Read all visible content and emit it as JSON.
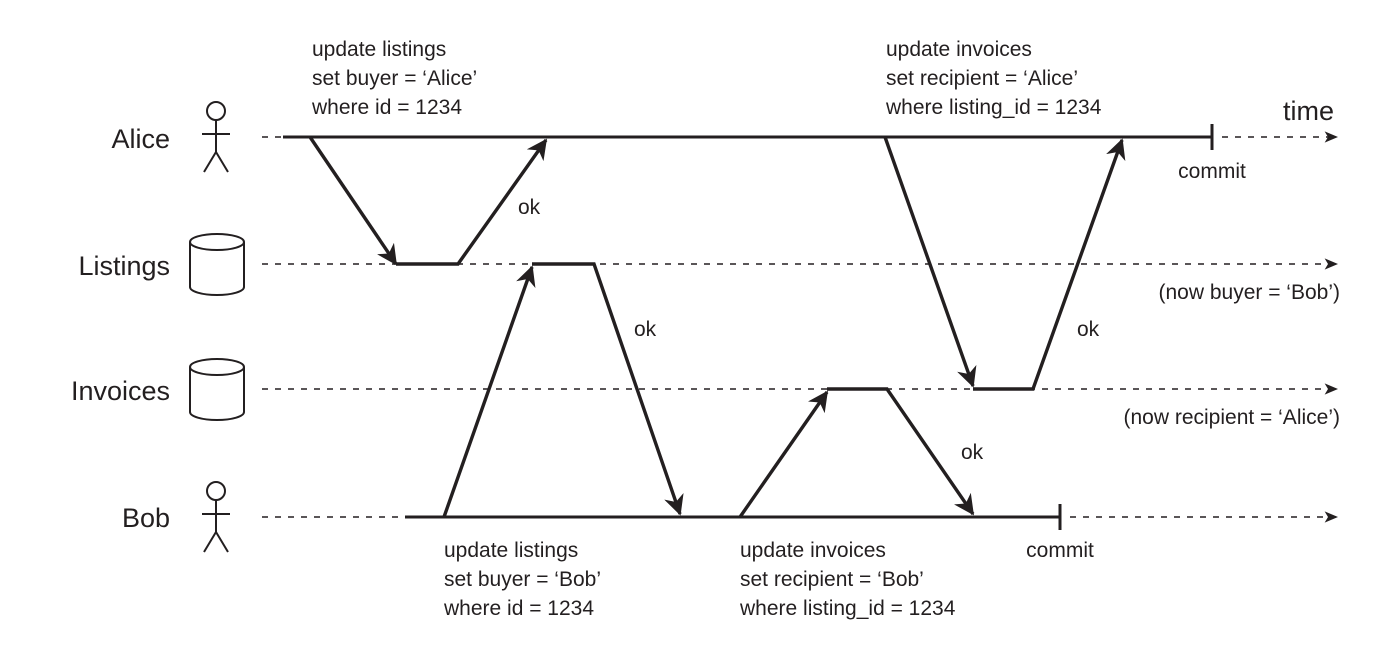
{
  "time_label": "time",
  "lanes": {
    "alice": {
      "label": "Alice",
      "icon": "person-icon"
    },
    "listings": {
      "label": "Listings",
      "icon": "database-icon"
    },
    "invoices": {
      "label": "Invoices",
      "icon": "database-icon"
    },
    "bob": {
      "label": "Bob",
      "icon": "person-icon"
    }
  },
  "notes": {
    "alice_update_listings": [
      "update listings",
      "set buyer = ‘Alice’",
      "where id = 1234"
    ],
    "alice_update_invoices": [
      "update invoices",
      "set recipient = ‘Alice’",
      "where listing_id = 1234"
    ],
    "bob_update_listings": [
      "update listings",
      "set buyer = ‘Bob’",
      "where id = 1234"
    ],
    "bob_update_invoices": [
      "update invoices",
      "set recipient = ‘Bob’",
      "where listing_id = 1234"
    ]
  },
  "acks": {
    "listings_to_alice": "ok",
    "listings_to_bob": "ok",
    "invoices_to_alice": "ok",
    "invoices_to_bob": "ok"
  },
  "commits": {
    "alice": "commit",
    "bob": "commit"
  },
  "states": {
    "listings_final": "(now buyer = ‘Bob’)",
    "invoices_final": "(now recipient = ‘Alice’)"
  }
}
